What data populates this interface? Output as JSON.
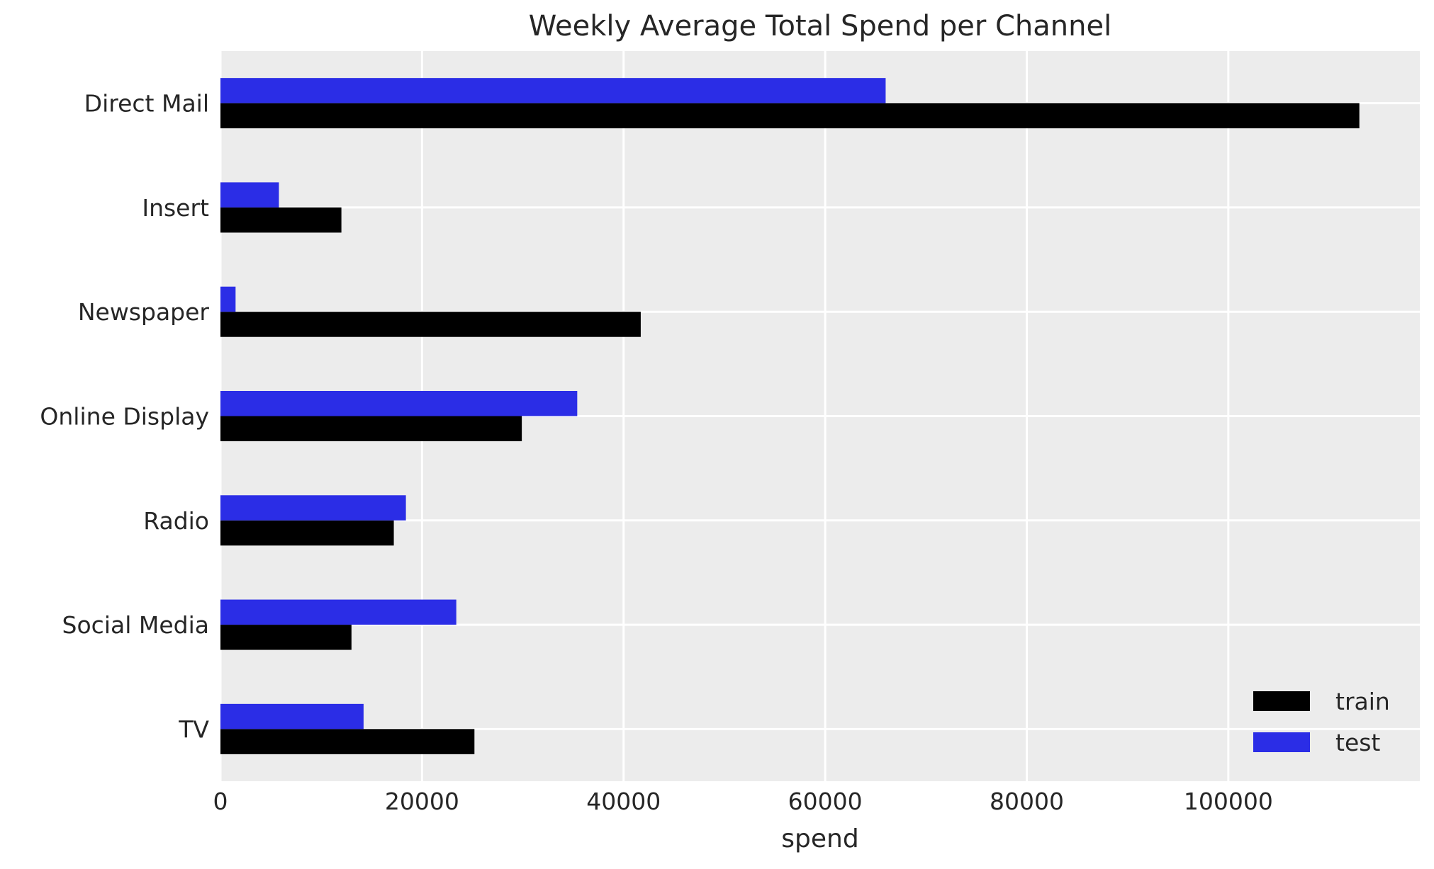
{
  "title": "Weekly Average Total Spend per Channel",
  "chart_data": {
    "type": "bar",
    "orientation": "horizontal",
    "title": "Weekly Average Total Spend per Channel",
    "xlabel": "spend",
    "ylabel": "",
    "categories": [
      "Direct Mail",
      "Insert",
      "Newspaper",
      "Online Display",
      "Radio",
      "Social Media",
      "TV"
    ],
    "series": [
      {
        "name": "train",
        "color": "#000000",
        "values": [
          113000,
          12000,
          41700,
          29900,
          17200,
          13000,
          25200
        ]
      },
      {
        "name": "test",
        "color": "#2B2DE6",
        "values": [
          66000,
          5800,
          1500,
          35400,
          18400,
          23400,
          14200
        ]
      }
    ],
    "xlim": [
      0,
      119000
    ],
    "xticks": [
      0,
      20000,
      40000,
      60000,
      80000,
      100000
    ],
    "xtick_labels": [
      "0",
      "20000",
      "40000",
      "60000",
      "80000",
      "100000"
    ],
    "grid": true,
    "legend_position": "lower right",
    "colors": {
      "plot_background": "#ECECEC",
      "figure_background": "#FFFFFF",
      "gridline": "#FFFFFF",
      "text": "#262626"
    }
  }
}
